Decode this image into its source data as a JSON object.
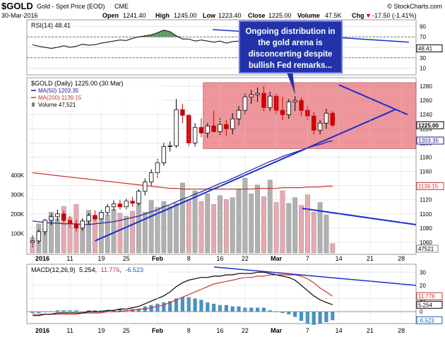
{
  "header": {
    "ticker": "$GOLD",
    "desc": "Gold - Spot Price (EOD)",
    "exchange": "CME",
    "date": "30-Mar-2016",
    "open_label": "Open",
    "open": "1241.40",
    "high_label": "High",
    "high": "1245.00",
    "low_label": "Low",
    "low": "1223.40",
    "close_label": "Close",
    "close": "1225.00",
    "volume_label": "Volume",
    "volume": "47.5K",
    "chg_label": "Chg",
    "chg": "-17.50 (-1.41%)",
    "chg_arrow": "▼",
    "brand": "© StockCharts.com"
  },
  "annotation": {
    "lines": [
      "Ongoing distribution in",
      "the gold arena is",
      "disconcerting despite",
      "bullish Fed remarks..."
    ]
  },
  "colors": {
    "up": "#000000",
    "down": "#cc0000",
    "zone": "#e8737a",
    "ma50": "#1a1a8c",
    "ma200": "#cc3333",
    "trend": "#1a2fcf",
    "vol_up": "#b0b0b0",
    "vol_down": "#e8a8b0",
    "macd_hist": "#4a90c0",
    "annot_bg": "#2233aa"
  },
  "chart_data": [
    {
      "type": "line",
      "title": "RSI(14) 48.41",
      "ylim": [
        0,
        100
      ],
      "ticks": [
        "90",
        "70",
        "50",
        "30",
        "10"
      ],
      "guides": [
        70,
        30
      ],
      "last_value": "48.41",
      "values": [
        55,
        52,
        50,
        48,
        50,
        53,
        50,
        52,
        56,
        54,
        55,
        58,
        60,
        62,
        64,
        63,
        67,
        70,
        72,
        74,
        78,
        83,
        80,
        72,
        66,
        66,
        62,
        64,
        62,
        60,
        62,
        58,
        61,
        62,
        66,
        62,
        64,
        61,
        64,
        62,
        60,
        63,
        58,
        54,
        50,
        48,
        51,
        49,
        48
      ]
    },
    {
      "type": "candlestick",
      "title": "$GOLD (Daily) 1225.00 (30 Mar)",
      "legend": [
        {
          "name": "MA(50) 1203.35",
          "color": "#1a1a8c"
        },
        {
          "name": "MA(200) 1139.15",
          "color": "#cc3333"
        },
        {
          "name": "Volume 47,521",
          "color": "#808080"
        }
      ],
      "ylim": [
        1045,
        1290
      ],
      "y_ticks": [
        "1280",
        "1260",
        "1240",
        "1220",
        "1200",
        "1180",
        "1160",
        "1140",
        "1120",
        "1100",
        "1080",
        "1060"
      ],
      "last_labels": [
        "1225.00",
        "1203.35",
        "1139.15",
        "47521"
      ],
      "volume_ticks": [
        "400K",
        "300K",
        "200K",
        "100K"
      ],
      "ohlc": [
        [
          1060,
          1070,
          1052,
          1062
        ],
        [
          1062,
          1078,
          1058,
          1075
        ],
        [
          1075,
          1093,
          1070,
          1091
        ],
        [
          1091,
          1100,
          1084,
          1096
        ],
        [
          1096,
          1106,
          1090,
          1100
        ],
        [
          1100,
          1105,
          1088,
          1091
        ],
        [
          1091,
          1098,
          1080,
          1086
        ],
        [
          1086,
          1092,
          1075,
          1080
        ],
        [
          1080,
          1094,
          1076,
          1090
        ],
        [
          1090,
          1101,
          1085,
          1098
        ],
        [
          1098,
          1105,
          1090,
          1093
        ],
        [
          1093,
          1106,
          1090,
          1102
        ],
        [
          1102,
          1114,
          1098,
          1110
        ],
        [
          1110,
          1119,
          1104,
          1114
        ],
        [
          1114,
          1120,
          1106,
          1110
        ],
        [
          1110,
          1122,
          1106,
          1118
        ],
        [
          1118,
          1124,
          1110,
          1115
        ],
        [
          1115,
          1135,
          1112,
          1132
        ],
        [
          1132,
          1150,
          1126,
          1145
        ],
        [
          1145,
          1163,
          1140,
          1158
        ],
        [
          1158,
          1178,
          1150,
          1172
        ],
        [
          1172,
          1200,
          1168,
          1195
        ],
        [
          1195,
          1202,
          1188,
          1196
        ],
        [
          1196,
          1262,
          1193,
          1247
        ],
        [
          1247,
          1255,
          1228,
          1239
        ],
        [
          1239,
          1241,
          1195,
          1200
        ],
        [
          1200,
          1228,
          1195,
          1222
        ],
        [
          1222,
          1235,
          1208,
          1214
        ],
        [
          1214,
          1228,
          1207,
          1224
        ],
        [
          1224,
          1245,
          1215,
          1216
        ],
        [
          1216,
          1236,
          1210,
          1226
        ],
        [
          1226,
          1232,
          1210,
          1220
        ],
        [
          1220,
          1242,
          1212,
          1234
        ],
        [
          1234,
          1252,
          1225,
          1246
        ],
        [
          1246,
          1270,
          1240,
          1265
        ],
        [
          1265,
          1275,
          1255,
          1268
        ],
        [
          1268,
          1278,
          1258,
          1270
        ],
        [
          1270,
          1280,
          1245,
          1250
        ],
        [
          1250,
          1272,
          1245,
          1266
        ],
        [
          1266,
          1270,
          1240,
          1246
        ],
        [
          1246,
          1265,
          1232,
          1240
        ],
        [
          1240,
          1262,
          1234,
          1258
        ],
        [
          1258,
          1266,
          1245,
          1260
        ],
        [
          1260,
          1264,
          1238,
          1246
        ],
        [
          1246,
          1252,
          1232,
          1238
        ],
        [
          1238,
          1244,
          1212,
          1218
        ],
        [
          1218,
          1232,
          1212,
          1228
        ],
        [
          1228,
          1248,
          1220,
          1242
        ],
        [
          1242,
          1245,
          1223,
          1225
        ]
      ],
      "volume": [
        80,
        150,
        125,
        210,
        175,
        240,
        185,
        250,
        165,
        220,
        185,
        210,
        195,
        225,
        205,
        190,
        215,
        255,
        210,
        270,
        235,
        265,
        240,
        255,
        360,
        275,
        320,
        265,
        305,
        250,
        295,
        275,
        285,
        330,
        385,
        305,
        350,
        290,
        375,
        260,
        320,
        255,
        285,
        245,
        300,
        210,
        260,
        195,
        48
      ],
      "volume_down": [
        true,
        false,
        false,
        false,
        false,
        true,
        true,
        true,
        false,
        false,
        true,
        false,
        false,
        false,
        true,
        false,
        true,
        false,
        false,
        false,
        false,
        false,
        false,
        false,
        false,
        true,
        false,
        true,
        false,
        true,
        false,
        true,
        false,
        false,
        false,
        false,
        false,
        true,
        false,
        true,
        true,
        false,
        false,
        true,
        true,
        true,
        false,
        false,
        true
      ],
      "ma50": [
        1090,
        1089,
        1088,
        1087,
        1087,
        1086,
        1086,
        1086,
        1085,
        1085,
        1086,
        1087,
        1088,
        1089,
        1091,
        1093,
        1095,
        1097,
        1100,
        1103,
        1106,
        1110,
        1113,
        1117,
        1121,
        1124,
        1128,
        1131,
        1135,
        1139,
        1143,
        1146,
        1150,
        1154,
        1158,
        1162,
        1166,
        1170,
        1174,
        1177,
        1181,
        1184,
        1187,
        1190,
        1193,
        1196,
        1198,
        1201,
        1203.35
      ],
      "ma200": [
        1158,
        1157,
        1156,
        1155,
        1154,
        1153,
        1152,
        1151,
        1150,
        1149,
        1148,
        1147,
        1146,
        1145,
        1144,
        1143,
        1142,
        1141,
        1140,
        1139,
        1138,
        1137,
        1136,
        1136,
        1135,
        1135,
        1135,
        1135,
        1135,
        1135,
        1135,
        1135,
        1135,
        1135,
        1135,
        1135,
        1136,
        1136,
        1136,
        1136,
        1137,
        1137,
        1137,
        1137,
        1138,
        1138,
        1138,
        1139,
        1139.15
      ]
    },
    {
      "type": "line",
      "title": "MACD(12,26,9)",
      "label_values": [
        {
          "text": "5.254",
          "color": "#000000"
        },
        {
          "text": "11.776",
          "color": "#cc3333"
        },
        {
          "text": "-6.523",
          "color": "#1a5fa8"
        }
      ],
      "ylim": [
        -8,
        35
      ],
      "y_ticks": [
        "30",
        "20",
        "10",
        "0"
      ],
      "last_labels": [
        "11.776",
        "5.254",
        "-6.523"
      ],
      "macd": [
        -3,
        -3,
        -2,
        -2,
        -1,
        -1,
        -1,
        -1,
        -1,
        0,
        0,
        0,
        1,
        1,
        2,
        2,
        3,
        4,
        6,
        8,
        10,
        12,
        15,
        19,
        22,
        24,
        25,
        26,
        26,
        27,
        27,
        28,
        28,
        29,
        29,
        29,
        30,
        30,
        29,
        28,
        27,
        26,
        24,
        20,
        16,
        12,
        9,
        7,
        5.254
      ],
      "signal": [
        -2,
        -2,
        -2,
        -2,
        -2,
        -2,
        -2,
        -2,
        -1,
        -1,
        -1,
        -1,
        0,
        0,
        0,
        1,
        1,
        2,
        2,
        3,
        4,
        5,
        7,
        9,
        11,
        13,
        15,
        17,
        19,
        21,
        22,
        23,
        24,
        25,
        26,
        26,
        27,
        27,
        28,
        28,
        28,
        28,
        28,
        27,
        25,
        22,
        18,
        15,
        11.776
      ],
      "histogram": [
        -1,
        -1,
        0,
        0,
        1,
        1,
        1,
        1,
        0,
        1,
        1,
        1,
        1,
        1,
        2,
        1,
        2,
        2,
        4,
        5,
        6,
        7,
        8,
        10,
        11,
        11,
        10,
        9,
        7,
        6,
        5,
        5,
        4,
        4,
        3,
        3,
        3,
        3,
        1,
        0,
        -1,
        -2,
        -4,
        -7,
        -9,
        -10,
        -9,
        -8,
        -6.523
      ]
    }
  ],
  "x_axis": {
    "labels": [
      {
        "text": "2016",
        "i": 0,
        "bold": true
      },
      {
        "text": "11",
        "i": 6
      },
      {
        "text": "19",
        "i": 11
      },
      {
        "text": "25",
        "i": 15
      },
      {
        "text": "Feb",
        "i": 20,
        "bold": true
      },
      {
        "text": "8",
        "i": 25
      },
      {
        "text": "16",
        "i": 30
      },
      {
        "text": "22",
        "i": 34
      },
      {
        "text": "Mar",
        "i": 39,
        "bold": true
      },
      {
        "text": "7",
        "i": 44
      },
      {
        "text": "14",
        "i": 49
      },
      {
        "text": "21",
        "i": 54
      },
      {
        "text": "28",
        "i": 59
      }
    ]
  }
}
